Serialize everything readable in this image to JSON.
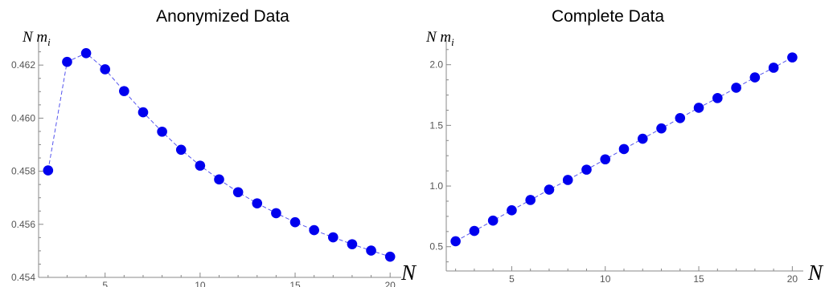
{
  "colors": {
    "series": "#0000ee",
    "line": "#5555ee"
  },
  "chart_data": [
    {
      "type": "scatter",
      "title": "Anonymized Data",
      "xlabel": "N",
      "ylabel": {
        "main": "N m",
        "sub": "i"
      },
      "xlim": [
        1.5,
        20.5
      ],
      "ylim": [
        0.454,
        0.4627
      ],
      "xticks": [
        5,
        10,
        15,
        20
      ],
      "yticks": [
        0.454,
        0.456,
        0.458,
        0.46,
        0.462
      ],
      "ytick_labels": [
        "0.454",
        "0.456",
        "0.458",
        "0.460",
        "0.462"
      ],
      "grid": false,
      "series": [
        {
          "x": [
            2,
            3,
            4,
            5,
            6,
            7,
            8,
            9,
            10,
            11,
            12,
            13,
            14,
            15,
            16,
            17,
            18,
            19,
            20
          ],
          "y": [
            0.45803,
            0.46212,
            0.46245,
            0.46184,
            0.46102,
            0.46022,
            0.45949,
            0.45881,
            0.45821,
            0.45769,
            0.45721,
            0.45679,
            0.45642,
            0.45608,
            0.45578,
            0.45551,
            0.45525,
            0.45501,
            0.45478
          ]
        }
      ]
    },
    {
      "type": "scatter",
      "title": "Complete Data",
      "xlabel": "N",
      "ylabel": {
        "main": "N m",
        "sub": "i"
      },
      "xlim": [
        1.5,
        20.5
      ],
      "ylim": [
        0.3,
        2.15
      ],
      "xticks": [
        5,
        10,
        15,
        20
      ],
      "yticks": [
        0.5,
        1.0,
        1.5,
        2.0
      ],
      "ytick_labels": [
        "0.5",
        "1.0",
        "1.5",
        "2.0"
      ],
      "grid": false,
      "series": [
        {
          "x": [
            2,
            3,
            4,
            5,
            6,
            7,
            8,
            9,
            10,
            11,
            12,
            13,
            14,
            15,
            16,
            17,
            18,
            19,
            20
          ],
          "y": [
            0.545,
            0.63,
            0.715,
            0.8,
            0.885,
            0.97,
            1.05,
            1.135,
            1.22,
            1.305,
            1.39,
            1.475,
            1.56,
            1.645,
            1.725,
            1.81,
            1.895,
            1.975,
            2.06
          ]
        }
      ]
    }
  ]
}
